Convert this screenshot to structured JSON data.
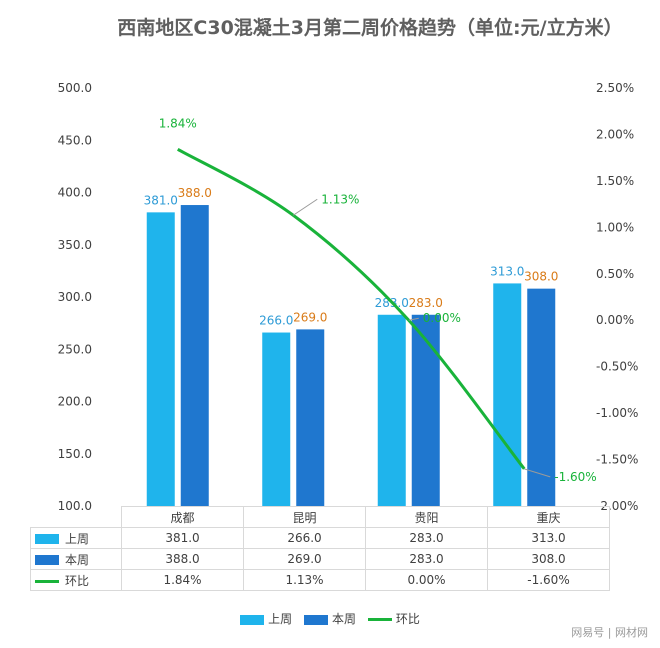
{
  "footer": "网易号 | 网材网",
  "colors": {
    "last_week": "#1FB4EC",
    "this_week": "#1F77CF",
    "wow": "#19B33A"
  },
  "chart_data": {
    "type": "bar",
    "title": "西南地区C30混凝土3月第二周价格趋势（单位:元/立方米）",
    "categories": [
      "成都",
      "昆明",
      "贵阳",
      "重庆"
    ],
    "series": [
      {
        "name": "上周",
        "type": "bar",
        "axis": "left",
        "values": [
          381.0,
          266.0,
          283.0,
          313.0
        ],
        "labels": [
          "381.0",
          "266.0",
          "283.0",
          "313.0"
        ]
      },
      {
        "name": "本周",
        "type": "bar",
        "axis": "left",
        "values": [
          388.0,
          269.0,
          283.0,
          308.0
        ],
        "labels": [
          "388.0",
          "269.0",
          "283.0",
          "308.0"
        ]
      },
      {
        "name": "环比",
        "type": "line",
        "axis": "right",
        "values": [
          1.84,
          1.13,
          0.0,
          -1.6
        ],
        "labels": [
          "1.84%",
          "1.13%",
          "0.00%",
          "-1.60%"
        ]
      }
    ],
    "y_left": {
      "min": 100,
      "max": 500,
      "step": 50,
      "ticks": [
        "500.0",
        "450.0",
        "400.0",
        "350.0",
        "300.0",
        "250.0",
        "200.0",
        "150.0",
        "100.0"
      ]
    },
    "y_right": {
      "min": -2.0,
      "max": 2.5,
      "step": 0.5,
      "ticks": [
        "2.50%",
        "2.00%",
        "1.50%",
        "1.00%",
        "0.50%",
        "0.00%",
        "-0.50%",
        "-1.00%",
        "-1.50%",
        "-2.00%"
      ]
    },
    "grid": false,
    "legend_position": "bottom",
    "data_table": true
  }
}
